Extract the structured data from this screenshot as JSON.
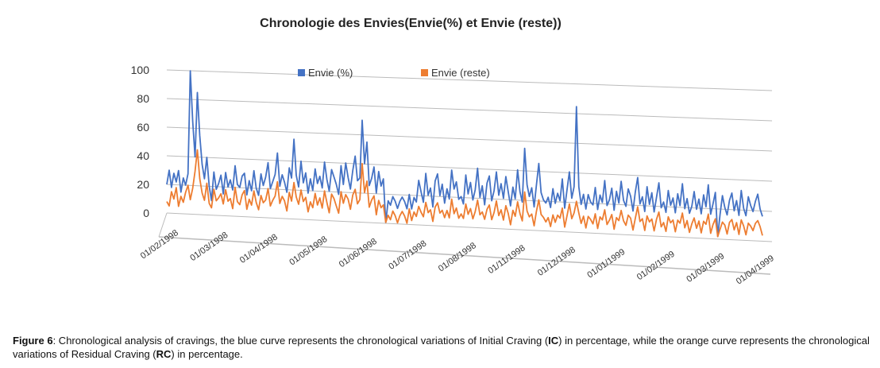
{
  "chart_data": {
    "type": "line",
    "title": "Chronologie des Envies(Envie(%) et Envie (reste))",
    "xlabel": "",
    "ylabel": "",
    "ylim": [
      0,
      100
    ],
    "yticks": [
      "100",
      "80",
      "60",
      "40",
      "20",
      "0"
    ],
    "xticks": [
      "01/02/1998",
      "01/03/1998",
      "01/04/1998",
      "01/05/1998",
      "01/06/1998",
      "01/07/1998",
      "01/08/1998",
      "01/11/1998",
      "01/12/1998",
      "01/01/1999",
      "01/02/1999",
      "01/03/1999",
      "01/04/1999"
    ],
    "legend_position": "top",
    "grid": true,
    "perspective": "3D-tilted",
    "series": [
      {
        "name": "Envie (%)",
        "color": "#4472C4",
        "values": [
          20,
          30,
          18,
          28,
          22,
          30,
          15,
          25,
          20,
          28,
          100,
          65,
          40,
          85,
          55,
          35,
          25,
          40,
          20,
          10,
          30,
          18,
          22,
          28,
          15,
          30,
          20,
          25,
          18,
          35,
          22,
          20,
          28,
          30,
          15,
          25,
          18,
          32,
          20,
          15,
          30,
          22,
          28,
          38,
          20,
          25,
          30,
          45,
          22,
          30,
          25,
          18,
          35,
          28,
          55,
          30,
          22,
          40,
          25,
          32,
          18,
          28,
          20,
          35,
          25,
          30,
          22,
          40,
          28,
          20,
          35,
          30,
          25,
          18,
          38,
          25,
          40,
          30,
          22,
          35,
          45,
          28,
          30,
          70,
          40,
          55,
          25,
          30,
          38,
          20,
          35,
          25,
          30,
          0,
          15,
          12,
          18,
          15,
          10,
          15,
          18,
          15,
          10,
          20,
          10,
          18,
          15,
          30,
          22,
          15,
          35,
          20,
          25,
          12,
          30,
          35,
          20,
          28,
          15,
          25,
          18,
          38,
          25,
          30,
          18,
          20,
          15,
          35,
          22,
          30,
          18,
          25,
          40,
          20,
          28,
          15,
          30,
          35,
          18,
          25,
          38,
          22,
          30,
          20,
          35,
          25,
          15,
          28,
          20,
          40,
          25,
          18,
          55,
          30,
          22,
          28,
          15,
          30,
          45,
          25,
          20,
          18,
          22,
          15,
          28,
          18,
          25,
          20,
          35,
          15,
          28,
          40,
          22,
          30,
          85,
          30,
          18,
          25,
          15,
          25,
          20,
          18,
          30,
          15,
          25,
          20,
          35,
          18,
          22,
          30,
          15,
          28,
          20,
          35,
          22,
          18,
          30,
          25,
          15,
          28,
          38,
          20,
          25,
          15,
          32,
          20,
          28,
          15,
          25,
          35,
          18,
          22,
          15,
          30,
          20,
          25,
          15,
          28,
          20,
          35,
          18,
          25,
          15,
          20,
          30,
          18,
          25,
          15,
          28,
          20,
          35,
          15,
          22,
          30,
          0,
          15,
          28,
          20,
          15,
          25,
          30,
          18,
          25,
          15,
          32,
          20,
          15,
          28,
          22,
          18,
          25,
          30,
          20,
          15
        ]
      },
      {
        "name": "Envie (reste)",
        "color": "#ED7D31",
        "values": [
          8,
          5,
          15,
          10,
          18,
          5,
          12,
          8,
          15,
          20,
          10,
          18,
          30,
          45,
          25,
          15,
          10,
          22,
          8,
          5,
          18,
          10,
          12,
          15,
          8,
          18,
          10,
          12,
          5,
          20,
          10,
          8,
          15,
          18,
          5,
          12,
          8,
          18,
          10,
          5,
          15,
          10,
          12,
          20,
          8,
          12,
          15,
          25,
          10,
          15,
          12,
          5,
          18,
          12,
          25,
          15,
          10,
          20,
          12,
          15,
          5,
          12,
          8,
          18,
          10,
          15,
          8,
          20,
          12,
          5,
          18,
          15,
          10,
          5,
          20,
          12,
          18,
          15,
          8,
          18,
          22,
          12,
          15,
          40,
          20,
          28,
          10,
          15,
          18,
          5,
          15,
          10,
          12,
          0,
          5,
          2,
          8,
          5,
          0,
          5,
          8,
          5,
          0,
          10,
          2,
          8,
          5,
          12,
          8,
          5,
          15,
          8,
          10,
          2,
          12,
          15,
          8,
          10,
          5,
          10,
          5,
          18,
          8,
          12,
          5,
          8,
          5,
          15,
          8,
          12,
          5,
          10,
          18,
          8,
          10,
          5,
          12,
          15,
          5,
          10,
          18,
          8,
          12,
          5,
          15,
          10,
          2,
          12,
          8,
          18,
          10,
          5,
          25,
          12,
          8,
          10,
          2,
          12,
          20,
          10,
          8,
          5,
          8,
          2,
          10,
          5,
          10,
          8,
          15,
          2,
          10,
          18,
          8,
          12,
          20,
          12,
          5,
          10,
          2,
          10,
          8,
          5,
          12,
          2,
          10,
          8,
          15,
          5,
          8,
          12,
          2,
          10,
          8,
          15,
          8,
          5,
          12,
          10,
          2,
          10,
          18,
          8,
          10,
          2,
          12,
          8,
          10,
          2,
          10,
          15,
          5,
          8,
          2,
          12,
          8,
          10,
          2,
          10,
          8,
          15,
          5,
          10,
          2,
          8,
          12,
          5,
          10,
          2,
          10,
          8,
          15,
          2,
          8,
          12,
          0,
          5,
          10,
          8,
          2,
          10,
          12,
          5,
          10,
          2,
          12,
          8,
          2,
          10,
          8,
          5,
          10,
          12,
          8,
          2
        ]
      }
    ]
  },
  "caption": {
    "label": "Figure 6",
    "text_1": ": Chronological analysis of cravings, the blue curve represents the chronological variations of Initial Craving (",
    "abbr_1": "IC",
    "text_2": ") in percentage, while the orange curve represents the chronological variations of Residual Craving (",
    "abbr_2": "RC",
    "text_3": ") in percentage."
  }
}
